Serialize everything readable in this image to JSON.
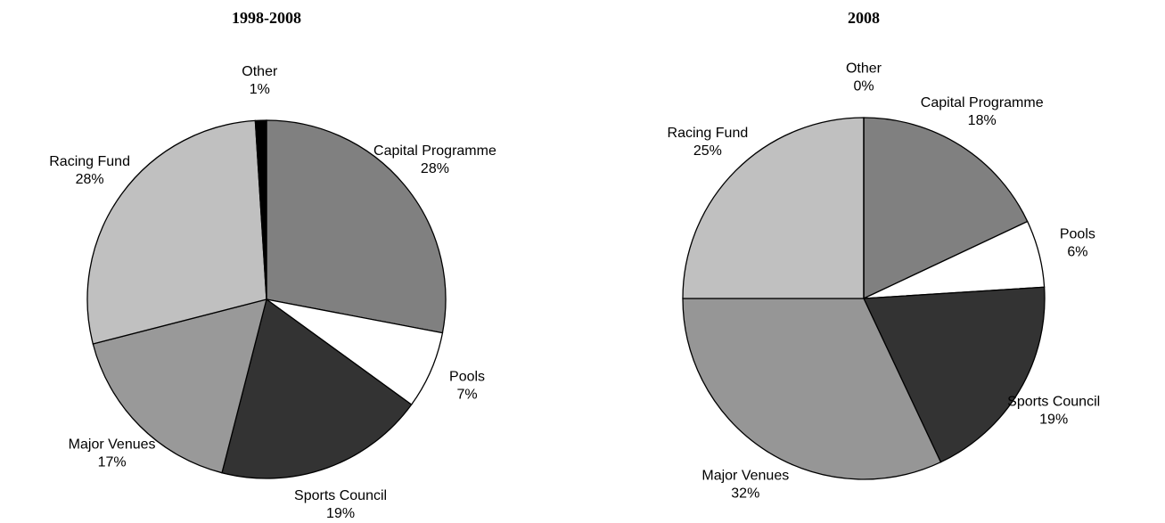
{
  "chart_data": [
    {
      "type": "pie",
      "title": "1998-2008",
      "categories": [
        "Capital Programme",
        "Pools",
        "Sports Council",
        "Major Venues",
        "Racing Fund",
        "Other"
      ],
      "values": [
        28,
        7,
        19,
        17,
        28,
        1
      ],
      "value_labels": [
        "28%",
        "7%",
        "19%",
        "17%",
        "28%",
        "1%"
      ],
      "colors": [
        "#808080",
        "#ffffff",
        "#333333",
        "#999999",
        "#c0c0c0",
        "#000000"
      ]
    },
    {
      "type": "pie",
      "title": "2008",
      "categories": [
        "Capital Programme",
        "Pools",
        "Sports Council",
        "Major Venues",
        "Racing Fund",
        "Other"
      ],
      "values": [
        18,
        6,
        19,
        32,
        25,
        0
      ],
      "value_labels": [
        "18%",
        "6%",
        "19%",
        "32%",
        "25%",
        "0%"
      ],
      "colors": [
        "#808080",
        "#ffffff",
        "#333333",
        "#969696",
        "#c0c0c0",
        "#000000"
      ]
    }
  ]
}
